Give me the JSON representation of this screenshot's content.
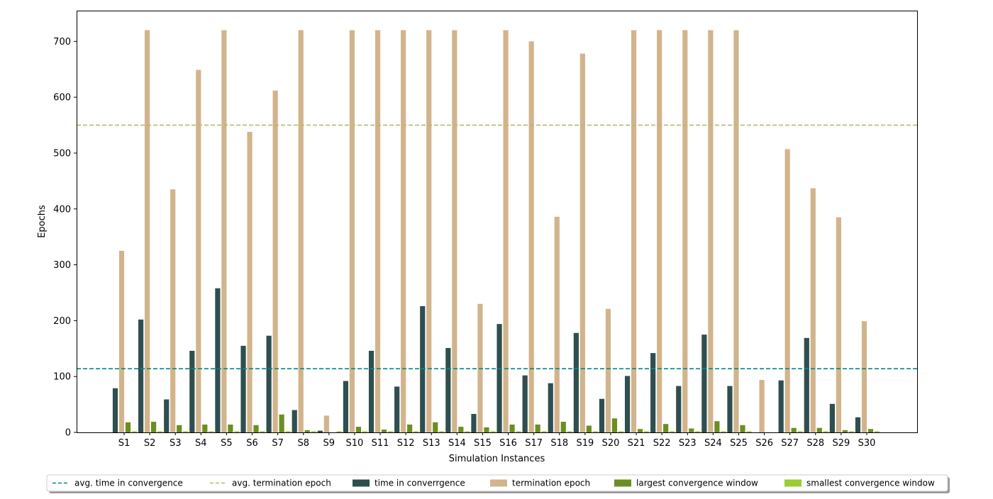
{
  "chart_data": {
    "type": "bar",
    "xlabel": "Simulation Instances",
    "ylabel": "Epochs",
    "ylim": [
      0,
      755
    ],
    "y_ticks": [
      0,
      100,
      200,
      300,
      400,
      500,
      600,
      700
    ],
    "grid": false,
    "legend_position": "bottom-center",
    "categories": [
      "S1",
      "S2",
      "S3",
      "S4",
      "S5",
      "S6",
      "S7",
      "S8",
      "S9",
      "S10",
      "S11",
      "S12",
      "S13",
      "S14",
      "S15",
      "S16",
      "S17",
      "S18",
      "S19",
      "S20",
      "S21",
      "S22",
      "S23",
      "S24",
      "S25",
      "S26",
      "S27",
      "S28",
      "S29",
      "S30"
    ],
    "series": [
      {
        "name": "time in converrgence",
        "color": "#2f4f4f",
        "values": [
          79,
          202,
          59,
          146,
          258,
          155,
          173,
          40,
          3,
          92,
          146,
          82,
          226,
          151,
          33,
          194,
          102,
          88,
          178,
          60,
          101,
          142,
          83,
          175,
          83,
          0,
          93,
          169,
          51,
          27
        ]
      },
      {
        "name": "termination epoch",
        "color": "#d2b48c",
        "values": [
          325,
          720,
          435,
          649,
          720,
          538,
          612,
          720,
          30,
          720,
          720,
          720,
          720,
          720,
          230,
          720,
          700,
          386,
          678,
          221,
          720,
          720,
          720,
          720,
          720,
          94,
          507,
          437,
          385,
          199
        ]
      },
      {
        "name": "largest convergence window",
        "color": "#6b8e23",
        "values": [
          18,
          19,
          13,
          14,
          14,
          13,
          32,
          4,
          0,
          10,
          5,
          14,
          18,
          10,
          9,
          14,
          14,
          19,
          12,
          25,
          6,
          15,
          7,
          20,
          13,
          0,
          8,
          8,
          4,
          6
        ]
      },
      {
        "name": "smallest convergence window",
        "color": "#9acd32",
        "values": [
          2,
          2,
          2,
          2,
          2,
          2,
          2,
          2,
          2,
          2,
          2,
          2,
          2,
          2,
          2,
          2,
          2,
          2,
          2,
          2,
          2,
          2,
          2,
          2,
          2,
          0,
          2,
          2,
          2,
          2
        ]
      }
    ],
    "reference_lines": [
      {
        "name": "avg. time in convergence",
        "value": 114,
        "color": "#008b8b"
      },
      {
        "name": "avg. termination epoch",
        "value": 550,
        "color": "#bdb76b"
      }
    ],
    "legend_order": [
      "avg. time in convergence",
      "avg. termination epoch",
      "time in converrgence",
      "termination epoch",
      "largest convergence window",
      "smallest convergence window"
    ]
  }
}
